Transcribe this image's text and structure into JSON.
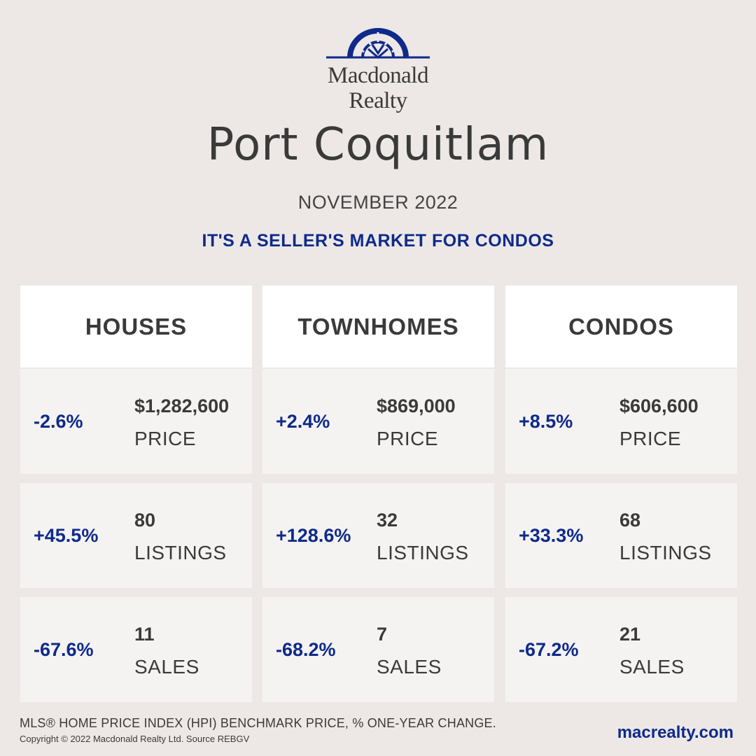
{
  "brand": {
    "name_line1": "Macdonald",
    "name_line2": "Realty",
    "logo_color": "#0e2a8a"
  },
  "title": "Port Coquitlam",
  "date": "NOVEMBER 2022",
  "headline": "IT'S A SELLER'S MARKET FOR CONDOS",
  "colors": {
    "accent": "#0e2a8a",
    "background": "#ede8e6",
    "card": "#f5f3f2",
    "header": "#ffffff"
  },
  "columns": [
    {
      "title": "HOUSES",
      "stats": [
        {
          "change": "-2.6%",
          "value": "$1,282,600",
          "label": "PRICE"
        },
        {
          "change": "+45.5%",
          "value": "80",
          "label": "LISTINGS"
        },
        {
          "change": "-67.6%",
          "value": "11",
          "label": "SALES"
        }
      ]
    },
    {
      "title": "TOWNHOMES",
      "stats": [
        {
          "change": "+2.4%",
          "value": "$869,000",
          "label": "PRICE"
        },
        {
          "change": "+128.6%",
          "value": "32",
          "label": "LISTINGS"
        },
        {
          "change": "-68.2%",
          "value": "7",
          "label": "SALES"
        }
      ]
    },
    {
      "title": "CONDOS",
      "stats": [
        {
          "change": "+8.5%",
          "value": "$606,600",
          "label": "PRICE"
        },
        {
          "change": "+33.3%",
          "value": "68",
          "label": "LISTINGS"
        },
        {
          "change": "-67.2%",
          "value": "21",
          "label": "SALES"
        }
      ]
    }
  ],
  "footer": {
    "note": "MLS® HOME PRICE INDEX (HPI) BENCHMARK PRICE, % ONE-YEAR CHANGE.",
    "copyright": "Copyright © 2022 Macdonald Realty Ltd. Source REBGV",
    "website": "macrealty.com"
  }
}
